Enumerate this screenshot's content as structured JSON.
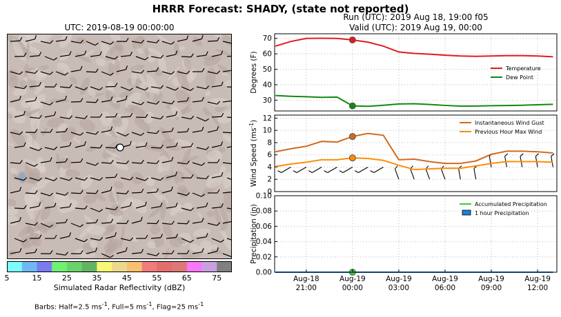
{
  "title": "HRRR Forecast: SHADY, (state not reported)",
  "map": {
    "title": "UTC: 2019-08-19 00:00:00",
    "colorbar": {
      "label": "Simulated Radar Reflectivity (dBZ)",
      "ticks": [
        "5",
        "15",
        "25",
        "35",
        "45",
        "55",
        "65",
        "75"
      ],
      "colors": [
        "#7cfcfc",
        "#6fb8f5",
        "#7b7bf0",
        "#70f070",
        "#6ad26a",
        "#62b462",
        "#f8f878",
        "#ecd88a",
        "#f8c070",
        "#f07d7d",
        "#e46e6e",
        "#dc7878",
        "#f878f8",
        "#c8a0e0",
        "#808080"
      ]
    }
  },
  "run": {
    "line1": "Run (UTC): 2019 Aug 18, 19:00 f05",
    "line2": "Valid (UTC): 2019 Aug 19, 00:00"
  },
  "barbs_note": {
    "prefix": "Barbs: Half=2.5 ms",
    "half_sup": "-1",
    "mid": ", Full=5 ms",
    "full_sup": "-1",
    "end": ", Flag=25 ms",
    "flag_sup": "-1"
  },
  "chart_data": [
    {
      "type": "line",
      "ylabel": "Degrees (F)",
      "ylim": [
        23,
        73
      ],
      "yticks": [
        "30",
        "40",
        "50",
        "60",
        "70"
      ],
      "x": [
        "2019-08-18 19:00",
        "2019-08-18 20:00",
        "2019-08-18 21:00",
        "2019-08-18 22:00",
        "2019-08-18 23:00",
        "2019-08-19 00:00",
        "2019-08-19 01:00",
        "2019-08-19 02:00",
        "2019-08-19 03:00",
        "2019-08-19 04:00",
        "2019-08-19 05:00",
        "2019-08-19 06:00",
        "2019-08-19 07:00",
        "2019-08-19 08:00",
        "2019-08-19 09:00",
        "2019-08-19 10:00",
        "2019-08-19 11:00",
        "2019-08-19 12:00",
        "2019-08-19 13:00"
      ],
      "series": [
        {
          "name": "Temperature",
          "color": "#e31a1c",
          "values": [
            65,
            68,
            70,
            70.1,
            70,
            69,
            67.6,
            65,
            61.2,
            60.3,
            59.8,
            59.1,
            58.6,
            58.4,
            58.6,
            58.8,
            58.8,
            58.6,
            58.1
          ]
        },
        {
          "name": "Dew Point",
          "color": "#118811",
          "values": [
            33,
            32.5,
            32.2,
            31.8,
            32,
            26.3,
            26,
            26.7,
            27.5,
            27.7,
            27.2,
            26.6,
            26.1,
            26.2,
            26.4,
            26.5,
            26.7,
            27,
            27.3
          ]
        }
      ],
      "marker_x": "2019-08-19 00:00",
      "legend": "right"
    },
    {
      "type": "line",
      "ylabel": "Wind Speed (ms",
      "ylabel_sup": "-1",
      "ylabel_end": ")",
      "ylim": [
        0,
        12.5
      ],
      "yticks": [
        "0",
        "2",
        "4",
        "6",
        "8",
        "10",
        "12"
      ],
      "x": [
        "2019-08-18 19:00",
        "2019-08-18 20:00",
        "2019-08-18 21:00",
        "2019-08-18 22:00",
        "2019-08-18 23:00",
        "2019-08-19 00:00",
        "2019-08-19 01:00",
        "2019-08-19 02:00",
        "2019-08-19 03:00",
        "2019-08-19 04:00",
        "2019-08-19 05:00",
        "2019-08-19 06:00",
        "2019-08-19 07:00",
        "2019-08-19 08:00",
        "2019-08-19 09:00",
        "2019-08-19 10:00",
        "2019-08-19 11:00",
        "2019-08-19 12:00",
        "2019-08-19 13:00"
      ],
      "series": [
        {
          "name": "Instantaneous Wind Gust",
          "color": "#d2691e",
          "values": [
            6.5,
            7,
            7.4,
            8.2,
            8.1,
            9,
            9.5,
            9.2,
            5.2,
            5.3,
            4.9,
            4.6,
            4.6,
            5,
            6.1,
            6.6,
            6.6,
            6.5,
            6.3
          ]
        },
        {
          "name": "Previous Hour Max Wind",
          "color": "#ff8c00",
          "values": [
            4.1,
            4.5,
            4.8,
            5.2,
            5.2,
            5.5,
            5.4,
            5.1,
            4.3,
            3.6,
            3.7,
            3.8,
            3.8,
            4.2,
            4.6,
            4.9,
            4.9,
            4.9,
            4.8
          ]
        }
      ],
      "marker_x": "2019-08-19 00:00",
      "legend": "top-right"
    },
    {
      "type": "line",
      "ylabel": "Precipitation (in)",
      "ylim": [
        0,
        0.1
      ],
      "yticks": [
        "0.00",
        "0.02",
        "0.04",
        "0.06",
        "0.08",
        "0.10"
      ],
      "xticks": [
        {
          "x": "2019-08-18 21:00",
          "line1": "Aug-18",
          "line2": "21:00"
        },
        {
          "x": "2019-08-19 00:00",
          "line1": "Aug-19",
          "line2": "00:00"
        },
        {
          "x": "2019-08-19 03:00",
          "line1": "Aug-19",
          "line2": "03:00"
        },
        {
          "x": "2019-08-19 06:00",
          "line1": "Aug-19",
          "line2": "06:00"
        },
        {
          "x": "2019-08-19 09:00",
          "line1": "Aug-19",
          "line2": "09:00"
        },
        {
          "x": "2019-08-19 12:00",
          "line1": "Aug-19",
          "line2": "12:00"
        }
      ],
      "series": [
        {
          "name": "Accumulated Precipitation",
          "color": "#32cd32",
          "values": [
            0,
            0,
            0,
            0,
            0,
            0,
            0,
            0,
            0,
            0,
            0,
            0,
            0,
            0,
            0,
            0,
            0,
            0,
            0
          ]
        },
        {
          "name": "1 hour Precipitation",
          "color": "#1e7fd8",
          "values": [
            0,
            0,
            0,
            0,
            0,
            0,
            0,
            0,
            0,
            0,
            0,
            0,
            0,
            0,
            0,
            0,
            0,
            0,
            0
          ]
        }
      ],
      "marker_x": "2019-08-19 00:00",
      "legend": "top-right"
    }
  ]
}
